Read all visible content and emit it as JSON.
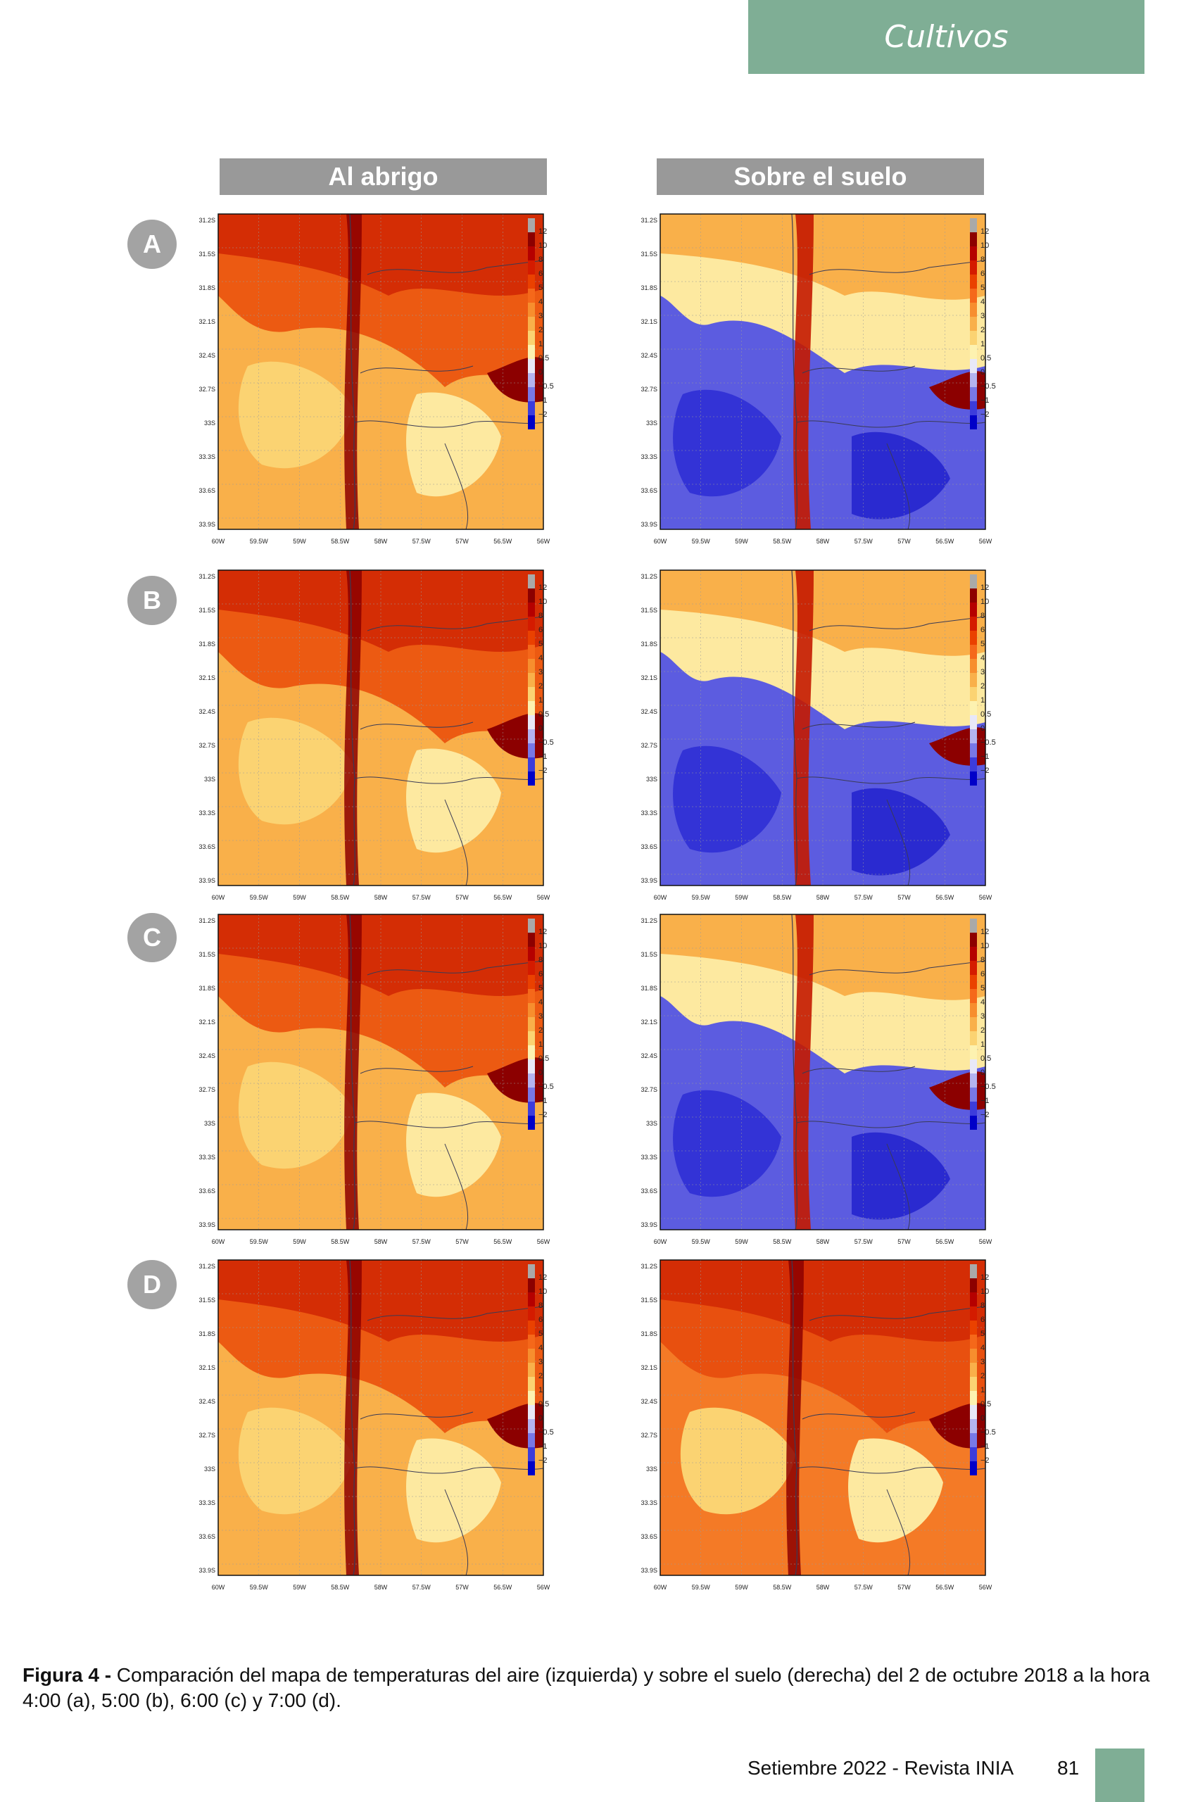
{
  "header": {
    "section": "Cultivos"
  },
  "columns": [
    "Al abrigo",
    "Sobre el suelo"
  ],
  "rows": [
    "A",
    "B",
    "C",
    "D"
  ],
  "map_axes": {
    "lat_labels": [
      "31.2S",
      "31.5S",
      "31.8S",
      "32.1S",
      "32.4S",
      "32.7S",
      "33S",
      "33.3S",
      "33.6S",
      "33.9S"
    ],
    "lon_labels": [
      "60W",
      "59.5W",
      "59W",
      "58.5W",
      "58W",
      "57.5W",
      "57W",
      "56.5W",
      "56W"
    ]
  },
  "colorbar": {
    "labels": [
      "12",
      "10",
      "8",
      "6",
      "5",
      "4",
      "3",
      "2",
      "1",
      "0.5",
      "0",
      "−0.5",
      "−1",
      "−2"
    ],
    "colors": [
      "#a9a9a9",
      "#8c0000",
      "#b50000",
      "#d41b00",
      "#ea4100",
      "#f5681a",
      "#f78e2e",
      "#f9b04a",
      "#fbd372",
      "#fdf2b0",
      "#e8e8f8",
      "#b4b4f0",
      "#7878e6",
      "#3c3cdc",
      "#0000c8"
    ]
  },
  "caption": {
    "label": "Figura 4 -",
    "text": " Comparación del mapa de temperaturas del aire (izquierda) y sobre el suelo (derecha) del 2 de octubre 2018 a la hora 4:00 (a), 5:00 (b), 6:00 (c) y 7:00 (d)."
  },
  "footer": {
    "text": "Setiembre 2022 - Revista INIA",
    "page": "81"
  }
}
